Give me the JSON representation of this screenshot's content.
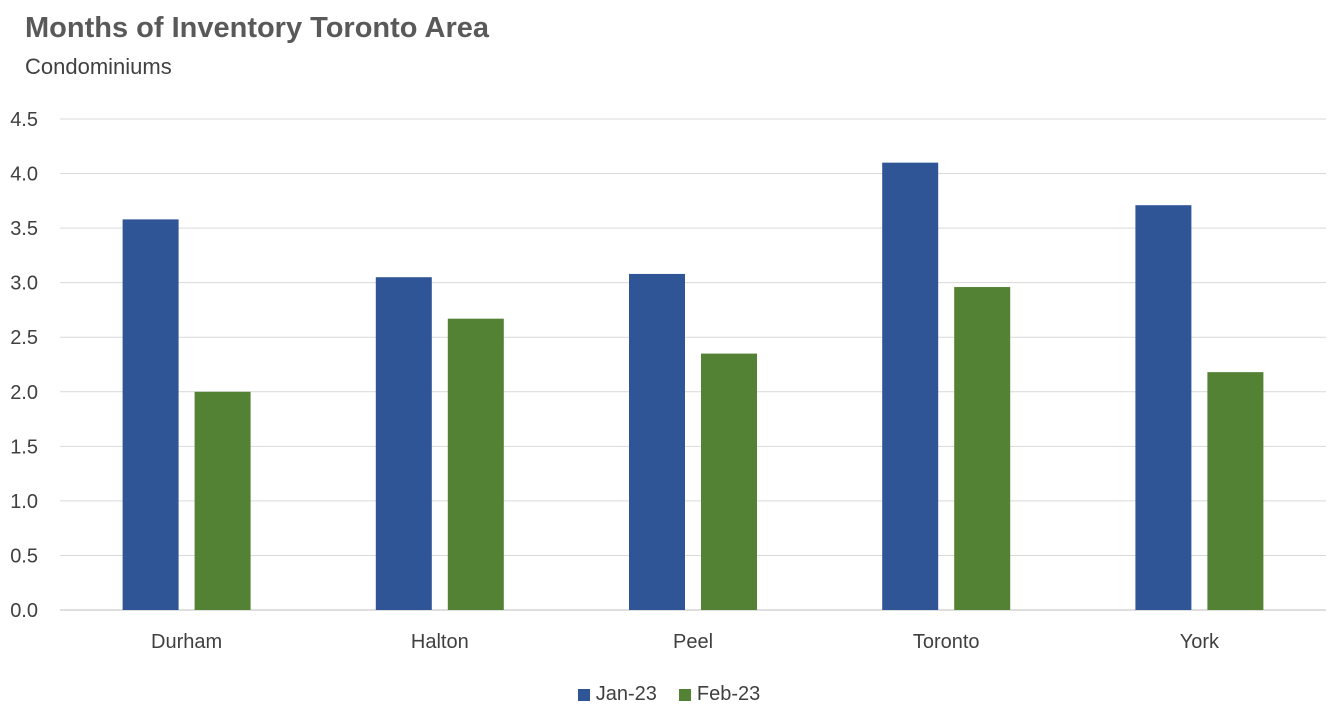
{
  "chart_data": {
    "type": "bar",
    "title": "Months of Inventory Toronto Area",
    "subtitle": "Condominiums",
    "xlabel": "",
    "ylabel": "",
    "categories": [
      "Durham",
      "Halton",
      "Peel",
      "Toronto",
      "York"
    ],
    "series": [
      {
        "name": "Jan-23",
        "color": "#2F5597",
        "values": [
          3.58,
          3.05,
          3.08,
          4.1,
          3.71
        ]
      },
      {
        "name": "Feb-23",
        "color": "#548235",
        "values": [
          2.0,
          2.67,
          2.35,
          2.96,
          2.18
        ]
      }
    ],
    "ylim": [
      0,
      4.5
    ],
    "yticks": [
      "0.0",
      "0.5",
      "1.0",
      "1.5",
      "2.0",
      "2.5",
      "3.0",
      "3.5",
      "4.0",
      "4.5"
    ],
    "grid": true,
    "legend_position": "bottom"
  }
}
